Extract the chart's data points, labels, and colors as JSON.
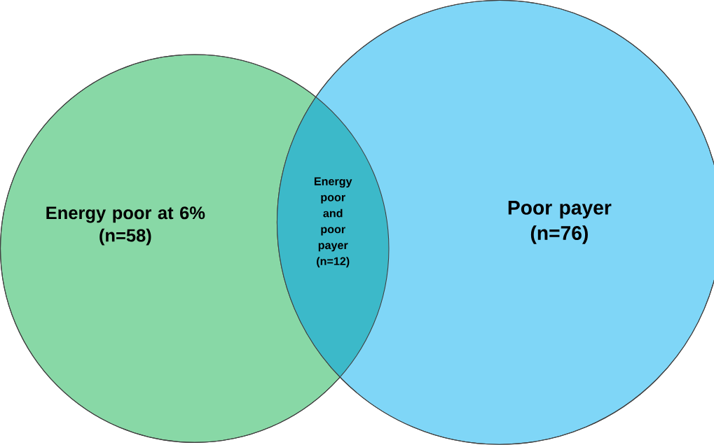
{
  "chart_data": {
    "type": "other",
    "categories": [
      "Energy poor at 6%",
      "Energy poor and poor payer",
      "Poor payer"
    ],
    "values": [
      58,
      12,
      76
    ],
    "value_labels": [
      "(n=58)",
      "(n=12)",
      "(n=76)"
    ],
    "colors": [
      "#88d8a6",
      "#3cb9c9",
      "#7fd6f7"
    ]
  }
}
